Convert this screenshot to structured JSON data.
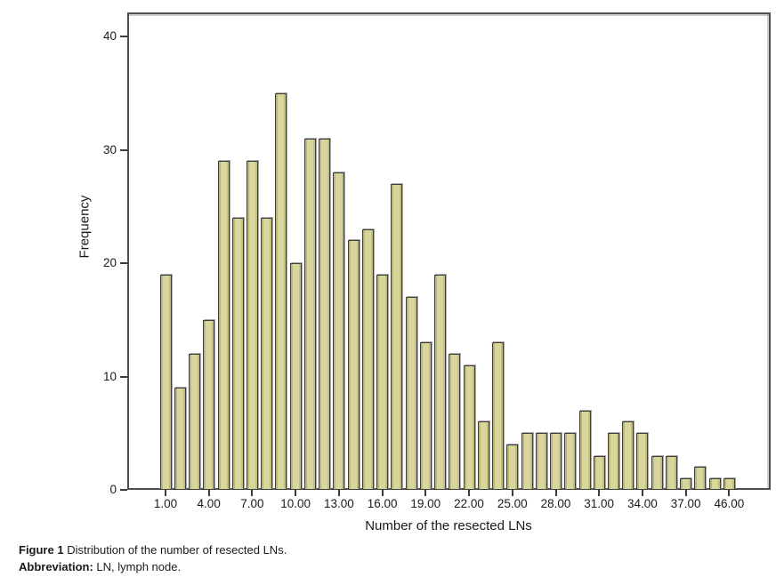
{
  "figure": {
    "caption": {
      "figure_label": "Figure 1",
      "figure_text": " Distribution of the number of resected LNs.",
      "abbr_label": "Abbreviation:",
      "abbr_text": " LN, lymph node."
    }
  },
  "chart_data": {
    "type": "bar",
    "title": "",
    "xlabel": "Number of the resected LNs",
    "ylabel": "Frequency",
    "ylim": [
      0,
      42
    ],
    "yticks": [
      0,
      10,
      20,
      30,
      40
    ],
    "grid": false,
    "legend": false,
    "bar_color": "#d9d69b",
    "bar_border_color": "#3f3f3f",
    "note": "Histogram; one bar per distinct resected-LN count; x ticks label every third bar",
    "values": [
      19,
      9,
      12,
      15,
      29,
      24,
      29,
      24,
      35,
      20,
      31,
      31,
      28,
      22,
      23,
      19,
      27,
      17,
      13,
      19,
      12,
      11,
      6,
      13,
      4,
      5,
      5,
      5,
      5,
      7,
      3,
      5,
      6,
      5,
      3,
      3,
      1,
      2,
      1,
      1
    ],
    "x_tick_labels": [
      "1.00",
      "4.00",
      "7.00",
      "10.00",
      "13.00",
      "16.00",
      "19.00",
      "22.00",
      "25.00",
      "28.00",
      "31.00",
      "34.00",
      "37.00",
      "46.00"
    ],
    "x_tick_bar_indices": [
      0,
      3,
      6,
      9,
      12,
      15,
      18,
      21,
      24,
      27,
      30,
      33,
      36,
      39
    ]
  }
}
